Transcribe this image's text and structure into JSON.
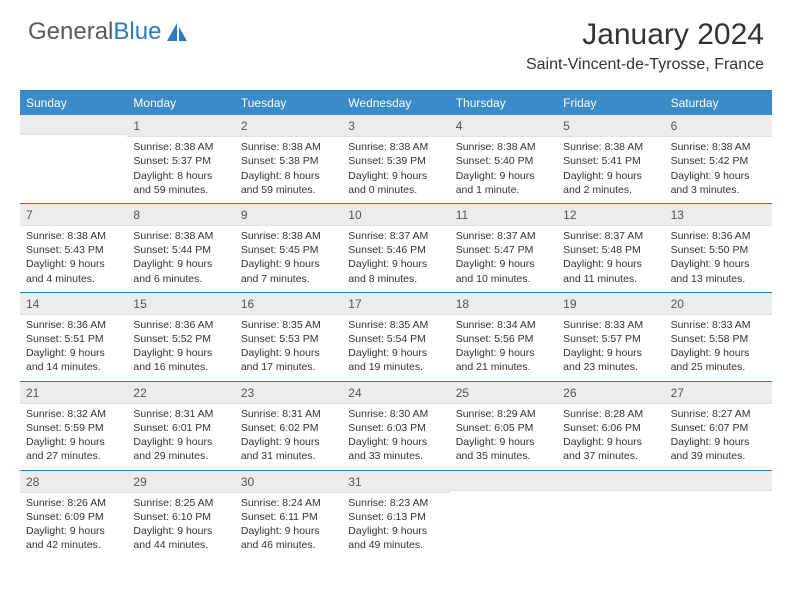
{
  "logo": {
    "general": "General",
    "blue": "Blue"
  },
  "title": "January 2024",
  "location": "Saint-Vincent-de-Tyrosse, France",
  "colors": {
    "header_bg": "#3b8bc9",
    "accent": "#2a7ac0",
    "daynum_bg": "#ececec",
    "text": "#333333"
  },
  "daynames": [
    "Sunday",
    "Monday",
    "Tuesday",
    "Wednesday",
    "Thursday",
    "Friday",
    "Saturday"
  ],
  "weeks": [
    [
      {
        "n": "",
        "sr": "",
        "ss": "",
        "dl": ""
      },
      {
        "n": "1",
        "sr": "Sunrise: 8:38 AM",
        "ss": "Sunset: 5:37 PM",
        "dl": "Daylight: 8 hours and 59 minutes."
      },
      {
        "n": "2",
        "sr": "Sunrise: 8:38 AM",
        "ss": "Sunset: 5:38 PM",
        "dl": "Daylight: 8 hours and 59 minutes."
      },
      {
        "n": "3",
        "sr": "Sunrise: 8:38 AM",
        "ss": "Sunset: 5:39 PM",
        "dl": "Daylight: 9 hours and 0 minutes."
      },
      {
        "n": "4",
        "sr": "Sunrise: 8:38 AM",
        "ss": "Sunset: 5:40 PM",
        "dl": "Daylight: 9 hours and 1 minute."
      },
      {
        "n": "5",
        "sr": "Sunrise: 8:38 AM",
        "ss": "Sunset: 5:41 PM",
        "dl": "Daylight: 9 hours and 2 minutes."
      },
      {
        "n": "6",
        "sr": "Sunrise: 8:38 AM",
        "ss": "Sunset: 5:42 PM",
        "dl": "Daylight: 9 hours and 3 minutes."
      }
    ],
    [
      {
        "n": "7",
        "sr": "Sunrise: 8:38 AM",
        "ss": "Sunset: 5:43 PM",
        "dl": "Daylight: 9 hours and 4 minutes."
      },
      {
        "n": "8",
        "sr": "Sunrise: 8:38 AM",
        "ss": "Sunset: 5:44 PM",
        "dl": "Daylight: 9 hours and 6 minutes."
      },
      {
        "n": "9",
        "sr": "Sunrise: 8:38 AM",
        "ss": "Sunset: 5:45 PM",
        "dl": "Daylight: 9 hours and 7 minutes."
      },
      {
        "n": "10",
        "sr": "Sunrise: 8:37 AM",
        "ss": "Sunset: 5:46 PM",
        "dl": "Daylight: 9 hours and 8 minutes."
      },
      {
        "n": "11",
        "sr": "Sunrise: 8:37 AM",
        "ss": "Sunset: 5:47 PM",
        "dl": "Daylight: 9 hours and 10 minutes."
      },
      {
        "n": "12",
        "sr": "Sunrise: 8:37 AM",
        "ss": "Sunset: 5:48 PM",
        "dl": "Daylight: 9 hours and 11 minutes."
      },
      {
        "n": "13",
        "sr": "Sunrise: 8:36 AM",
        "ss": "Sunset: 5:50 PM",
        "dl": "Daylight: 9 hours and 13 minutes."
      }
    ],
    [
      {
        "n": "14",
        "sr": "Sunrise: 8:36 AM",
        "ss": "Sunset: 5:51 PM",
        "dl": "Daylight: 9 hours and 14 minutes."
      },
      {
        "n": "15",
        "sr": "Sunrise: 8:36 AM",
        "ss": "Sunset: 5:52 PM",
        "dl": "Daylight: 9 hours and 16 minutes."
      },
      {
        "n": "16",
        "sr": "Sunrise: 8:35 AM",
        "ss": "Sunset: 5:53 PM",
        "dl": "Daylight: 9 hours and 17 minutes."
      },
      {
        "n": "17",
        "sr": "Sunrise: 8:35 AM",
        "ss": "Sunset: 5:54 PM",
        "dl": "Daylight: 9 hours and 19 minutes."
      },
      {
        "n": "18",
        "sr": "Sunrise: 8:34 AM",
        "ss": "Sunset: 5:56 PM",
        "dl": "Daylight: 9 hours and 21 minutes."
      },
      {
        "n": "19",
        "sr": "Sunrise: 8:33 AM",
        "ss": "Sunset: 5:57 PM",
        "dl": "Daylight: 9 hours and 23 minutes."
      },
      {
        "n": "20",
        "sr": "Sunrise: 8:33 AM",
        "ss": "Sunset: 5:58 PM",
        "dl": "Daylight: 9 hours and 25 minutes."
      }
    ],
    [
      {
        "n": "21",
        "sr": "Sunrise: 8:32 AM",
        "ss": "Sunset: 5:59 PM",
        "dl": "Daylight: 9 hours and 27 minutes."
      },
      {
        "n": "22",
        "sr": "Sunrise: 8:31 AM",
        "ss": "Sunset: 6:01 PM",
        "dl": "Daylight: 9 hours and 29 minutes."
      },
      {
        "n": "23",
        "sr": "Sunrise: 8:31 AM",
        "ss": "Sunset: 6:02 PM",
        "dl": "Daylight: 9 hours and 31 minutes."
      },
      {
        "n": "24",
        "sr": "Sunrise: 8:30 AM",
        "ss": "Sunset: 6:03 PM",
        "dl": "Daylight: 9 hours and 33 minutes."
      },
      {
        "n": "25",
        "sr": "Sunrise: 8:29 AM",
        "ss": "Sunset: 6:05 PM",
        "dl": "Daylight: 9 hours and 35 minutes."
      },
      {
        "n": "26",
        "sr": "Sunrise: 8:28 AM",
        "ss": "Sunset: 6:06 PM",
        "dl": "Daylight: 9 hours and 37 minutes."
      },
      {
        "n": "27",
        "sr": "Sunrise: 8:27 AM",
        "ss": "Sunset: 6:07 PM",
        "dl": "Daylight: 9 hours and 39 minutes."
      }
    ],
    [
      {
        "n": "28",
        "sr": "Sunrise: 8:26 AM",
        "ss": "Sunset: 6:09 PM",
        "dl": "Daylight: 9 hours and 42 minutes."
      },
      {
        "n": "29",
        "sr": "Sunrise: 8:25 AM",
        "ss": "Sunset: 6:10 PM",
        "dl": "Daylight: 9 hours and 44 minutes."
      },
      {
        "n": "30",
        "sr": "Sunrise: 8:24 AM",
        "ss": "Sunset: 6:11 PM",
        "dl": "Daylight: 9 hours and 46 minutes."
      },
      {
        "n": "31",
        "sr": "Sunrise: 8:23 AM",
        "ss": "Sunset: 6:13 PM",
        "dl": "Daylight: 9 hours and 49 minutes."
      },
      {
        "n": "",
        "sr": "",
        "ss": "",
        "dl": ""
      },
      {
        "n": "",
        "sr": "",
        "ss": "",
        "dl": ""
      },
      {
        "n": "",
        "sr": "",
        "ss": "",
        "dl": ""
      }
    ]
  ]
}
